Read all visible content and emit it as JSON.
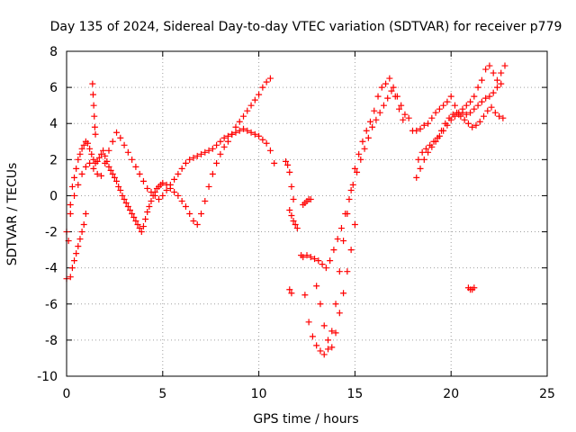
{
  "chart_data": {
    "type": "scatter",
    "title": "Day 135 of 2024, Sidereal Day-to-day VTEC variation (SDTVAR) for receiver p779",
    "xlabel": "GPS time / hours",
    "ylabel": "SDTVAR / TECUs",
    "xlim": [
      0,
      25
    ],
    "ylim": [
      -10,
      8
    ],
    "xticks": [
      "0",
      "5",
      "10",
      "15",
      "20",
      "25"
    ],
    "yticks": [
      "-10",
      "-8",
      "-6",
      "-4",
      "-2",
      "0",
      "2",
      "4",
      "6",
      "8"
    ],
    "grid": true,
    "marker": "plus",
    "color": "#ff0000",
    "series": [
      {
        "x": [
          0.0,
          0.1,
          0.2,
          0.3,
          0.4,
          0.5,
          0.6,
          0.7,
          0.8,
          0.9,
          1.0,
          1.1,
          1.2,
          1.3,
          1.4,
          1.5,
          1.6,
          1.7,
          1.8,
          1.9,
          2.0,
          2.1,
          2.2,
          2.3,
          2.4,
          2.5,
          2.6,
          2.7,
          2.8,
          2.9,
          3.0,
          3.1,
          3.2,
          3.3,
          3.4,
          3.5,
          3.6,
          3.7,
          3.8,
          3.9,
          4.0,
          4.1,
          4.2,
          4.3,
          4.4,
          4.5,
          4.6,
          4.7,
          4.8,
          4.9,
          5.0,
          5.2,
          5.4,
          5.6,
          5.8,
          6.0,
          6.2,
          6.4,
          6.6,
          6.8,
          7.0,
          7.2,
          7.4,
          7.6,
          7.8,
          8.0,
          8.2,
          8.4,
          8.6,
          8.8,
          9.0,
          9.2,
          9.4,
          9.6,
          9.8,
          10.0,
          10.2,
          10.4,
          10.6
        ],
        "y": [
          -4.6,
          -2.5,
          -0.5,
          0.5,
          1.0,
          1.5,
          2.0,
          2.3,
          2.6,
          2.8,
          3.0,
          2.9,
          2.6,
          2.3,
          2.0,
          1.8,
          1.9,
          2.1,
          2.3,
          2.5,
          2.2,
          1.9,
          1.6,
          1.4,
          1.2,
          1.0,
          0.8,
          0.5,
          0.3,
          0.0,
          -0.2,
          -0.4,
          -0.6,
          -0.8,
          -1.0,
          -1.2,
          -1.4,
          -1.6,
          -1.8,
          -2.0,
          -1.7,
          -1.3,
          -0.9,
          -0.6,
          -0.3,
          0.0,
          0.2,
          0.4,
          0.5,
          0.6,
          0.7,
          0.6,
          0.4,
          0.2,
          0.0,
          -0.3,
          -0.6,
          -1.0,
          -1.4,
          -1.6,
          -1.0,
          -0.3,
          0.5,
          1.2,
          1.8,
          2.3,
          2.7,
          3.0,
          3.4,
          3.8,
          4.1,
          4.4,
          4.7,
          5.0,
          5.3,
          5.6,
          6.0,
          6.3,
          6.5
        ]
      },
      {
        "x": [
          0.0,
          0.2,
          0.4,
          0.6,
          0.8,
          1.0,
          1.2,
          1.4,
          1.6,
          1.8,
          2.0,
          2.2,
          2.4,
          2.6,
          2.8,
          3.0,
          3.2,
          3.4,
          3.6,
          3.8,
          4.0,
          4.2,
          4.4,
          4.6,
          4.8,
          5.0,
          5.2,
          5.4,
          5.6,
          5.8,
          6.0,
          6.2,
          6.4,
          6.6,
          6.8,
          7.0,
          7.2,
          7.4,
          7.6,
          7.8,
          8.0,
          8.2,
          8.4,
          8.6,
          8.8,
          9.0,
          9.2,
          9.4,
          9.6,
          9.8,
          10.0,
          10.2,
          10.4,
          10.6,
          10.8
        ],
        "y": [
          -2.0,
          -1.0,
          0.0,
          0.6,
          1.2,
          1.6,
          1.8,
          1.5,
          1.2,
          1.1,
          1.8,
          2.5,
          3.0,
          3.5,
          3.2,
          2.8,
          2.4,
          2.0,
          1.6,
          1.2,
          0.8,
          0.4,
          0.2,
          0.0,
          -0.2,
          0.0,
          0.3,
          0.6,
          0.9,
          1.2,
          1.5,
          1.8,
          2.0,
          2.1,
          2.2,
          2.3,
          2.4,
          2.5,
          2.6,
          2.8,
          3.0,
          3.2,
          3.3,
          3.4,
          3.5,
          3.6,
          3.7,
          3.6,
          3.5,
          3.4,
          3.3,
          3.1,
          2.9,
          2.5,
          1.8
        ]
      },
      {
        "x": [
          0.2,
          0.3,
          0.4,
          0.5,
          0.6,
          0.7,
          0.8,
          0.9,
          1.0
        ],
        "y": [
          -4.5,
          -4.0,
          -3.6,
          -3.2,
          -2.8,
          -2.4,
          -2.0,
          -1.6,
          -1.0
        ]
      },
      {
        "x": [
          1.35,
          1.38,
          1.41,
          1.44,
          1.47,
          1.5
        ],
        "y": [
          6.2,
          5.6,
          5.0,
          4.4,
          3.8,
          3.4
        ]
      },
      {
        "x": [
          11.4,
          11.5,
          11.6,
          11.7,
          11.8
        ],
        "y": [
          1.9,
          1.7,
          1.3,
          0.5,
          -0.2
        ]
      },
      {
        "x": [
          11.6,
          11.7,
          11.8,
          11.9,
          12.0
        ],
        "y": [
          -0.8,
          -1.1,
          -1.4,
          -1.6,
          -1.8
        ]
      },
      {
        "x": [
          12.3,
          12.4,
          12.5,
          12.6,
          12.7
        ],
        "y": [
          -0.5,
          -0.4,
          -0.3,
          -0.2,
          -0.2
        ]
      },
      {
        "x": [
          11.6,
          11.7
        ],
        "y": [
          -5.2,
          -5.4
        ]
      },
      {
        "x": [
          12.2,
          12.4,
          12.6,
          12.8,
          13.0,
          13.2,
          13.4,
          13.6,
          13.8,
          14.0,
          14.2,
          14.4,
          14.6,
          14.8,
          15.0,
          15.2,
          15.4,
          15.6,
          15.8,
          16.0,
          16.2,
          16.4,
          16.6,
          16.8,
          17.0,
          17.2,
          17.4,
          17.6,
          17.8
        ],
        "y": [
          -3.3,
          -5.5,
          -7.0,
          -7.8,
          -8.3,
          -8.6,
          -8.8,
          -8.5,
          -7.5,
          -6.0,
          -4.2,
          -2.5,
          -1.0,
          0.3,
          1.5,
          2.3,
          3.0,
          3.6,
          4.1,
          4.7,
          5.5,
          6.0,
          6.2,
          6.5,
          6.0,
          5.5,
          5.0,
          4.5,
          4.3
        ]
      },
      {
        "x": [
          12.3,
          12.5,
          12.7,
          12.9,
          13.1,
          13.3,
          13.5,
          13.7,
          13.9,
          14.1,
          14.3,
          14.5,
          14.7,
          14.9,
          15.1,
          15.3,
          15.5,
          15.7,
          15.9,
          16.1,
          16.3,
          16.5,
          16.7,
          16.9,
          17.1,
          17.3,
          17.5
        ],
        "y": [
          -3.4,
          -3.3,
          -3.4,
          -3.5,
          -3.6,
          -3.8,
          -4.0,
          -3.6,
          -3.0,
          -2.4,
          -1.8,
          -1.0,
          -0.2,
          0.6,
          1.3,
          2.0,
          2.6,
          3.2,
          3.8,
          4.2,
          4.6,
          5.0,
          5.4,
          5.8,
          5.5,
          4.8,
          4.2
        ]
      },
      {
        "x": [
          13.0,
          13.2,
          13.4,
          13.6,
          13.8,
          14.0,
          14.2,
          14.4,
          14.6,
          14.8,
          15.0
        ],
        "y": [
          -5.0,
          -6.0,
          -7.2,
          -8.0,
          -8.4,
          -7.6,
          -6.5,
          -5.4,
          -4.2,
          -3.0,
          -1.6
        ]
      },
      {
        "x": [
          18.0,
          18.2,
          18.4,
          18.6,
          18.8,
          19.0,
          19.2,
          19.4,
          19.6,
          19.8,
          20.0,
          20.2,
          20.4,
          20.6,
          20.8,
          21.0,
          21.2,
          21.4,
          21.6,
          21.8,
          22.0,
          22.2,
          22.4,
          22.6,
          22.8
        ],
        "y": [
          3.6,
          3.6,
          3.7,
          3.9,
          4.0,
          4.3,
          4.6,
          4.8,
          5.0,
          5.2,
          5.5,
          5.0,
          4.6,
          4.8,
          5.0,
          5.2,
          5.5,
          6.0,
          6.4,
          7.0,
          7.2,
          6.8,
          6.4,
          6.8,
          7.2
        ]
      },
      {
        "x": [
          18.2,
          18.4,
          18.6,
          18.8,
          19.0,
          19.2,
          19.4,
          19.6,
          19.8,
          20.0,
          20.2,
          20.4,
          20.6,
          20.8,
          21.0,
          21.2,
          21.4,
          21.6,
          21.8,
          22.0,
          22.2,
          22.4,
          22.6
        ],
        "y": [
          1.0,
          1.5,
          2.0,
          2.4,
          2.7,
          3.0,
          3.3,
          3.6,
          3.9,
          4.2,
          4.4,
          4.5,
          4.6,
          4.5,
          4.6,
          4.8,
          5.0,
          5.2,
          5.4,
          5.5,
          5.7,
          6.0,
          6.2
        ]
      },
      {
        "x": [
          18.3,
          18.5,
          18.7,
          18.9,
          19.1,
          19.3,
          19.5,
          19.7,
          19.9,
          20.1,
          20.3,
          20.5,
          20.7,
          20.9,
          21.1,
          21.3,
          21.5,
          21.7,
          21.9,
          22.1,
          22.3,
          22.5,
          22.7
        ],
        "y": [
          2.0,
          2.4,
          2.6,
          2.8,
          3.0,
          3.2,
          3.6,
          4.0,
          4.3,
          4.5,
          4.6,
          4.4,
          4.2,
          4.0,
          3.8,
          3.9,
          4.1,
          4.4,
          4.7,
          4.9,
          4.6,
          4.4,
          4.3
        ]
      },
      {
        "x": [
          20.9,
          21.0,
          21.1,
          21.2
        ],
        "y": [
          -5.1,
          -5.2,
          -5.2,
          -5.1
        ]
      }
    ]
  }
}
